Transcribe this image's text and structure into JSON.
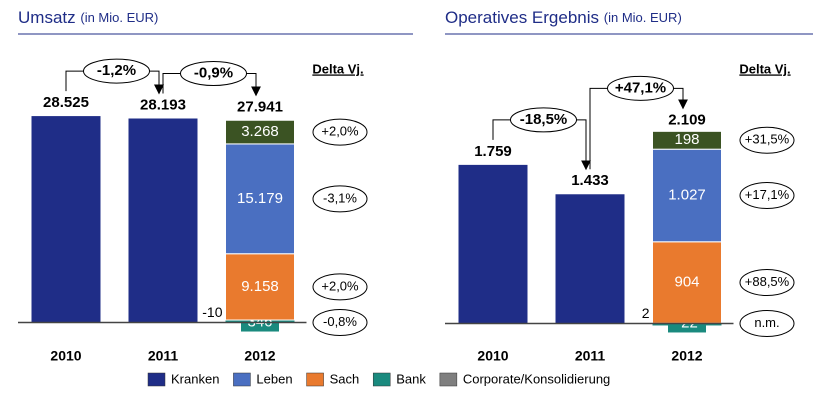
{
  "chart_data": [
    {
      "type": "bar",
      "stacked": true,
      "title": "Umsatz",
      "subtitle": "(in Mio. EUR)",
      "delta_header": "Delta Vj.",
      "ylim": [
        -2000,
        36000
      ],
      "categories": [
        "2010",
        "2011",
        "2012"
      ],
      "totals": [
        28525,
        28193,
        27941
      ],
      "total_labels": [
        "28.525",
        "28.193",
        "27.941"
      ],
      "total_color": "#1f2d87",
      "changes": [
        "-1,2%",
        "-0,9%"
      ],
      "breakdown": [
        null,
        null,
        [
          {
            "value": -10,
            "color": "#7f7f7f"
          },
          {
            "value": 346,
            "color": "#1a8a7e",
            "delta": "-0,8%"
          },
          {
            "value": 9158,
            "value_label": "9.158",
            "color": "#e97a2e",
            "delta": "+2,0%"
          },
          {
            "value": 15179,
            "value_label": "15.179",
            "color": "#4a6fc1",
            "delta": "-3,1%"
          },
          {
            "value": 3268,
            "value_label": "3.268",
            "color": "#3b5323",
            "delta": "+2,0%"
          }
        ]
      ]
    },
    {
      "type": "bar",
      "stacked": true,
      "title": "Operatives Ergebnis",
      "subtitle": "(in Mio. EUR)",
      "delta_header": "Delta Vj.",
      "ylim": [
        -150,
        2900
      ],
      "categories": [
        "2010",
        "2011",
        "2012"
      ],
      "totals": [
        1759,
        1433,
        2109
      ],
      "total_labels": [
        "1.759",
        "1.433",
        "2.109"
      ],
      "total_color": "#1f2d87",
      "changes": [
        "-18,5%",
        "+47,1%"
      ],
      "breakdown": [
        null,
        null,
        [
          {
            "value": 2,
            "color": "#7f7f7f"
          },
          {
            "value": -22,
            "color": "#1a8a7e",
            "delta": "n.m."
          },
          {
            "value": 904,
            "color": "#e97a2e",
            "delta": "+88,5%"
          },
          {
            "value": 1027,
            "value_label": "1.027",
            "color": "#4a6fc1",
            "delta": "+17,1%"
          },
          {
            "value": 198,
            "color": "#3b5323",
            "delta": "+31,5%"
          }
        ]
      ]
    }
  ],
  "legend": [
    {
      "name": "Kranken",
      "color": "#1f2d87"
    },
    {
      "name": "Leben",
      "color": "#4a6fc1"
    },
    {
      "name": "Sach",
      "color": "#e97a2e"
    },
    {
      "name": "Bank",
      "color": "#1a8a7e"
    },
    {
      "name": "Corporate/Konsolidierung",
      "color": "#7f7f7f"
    }
  ]
}
